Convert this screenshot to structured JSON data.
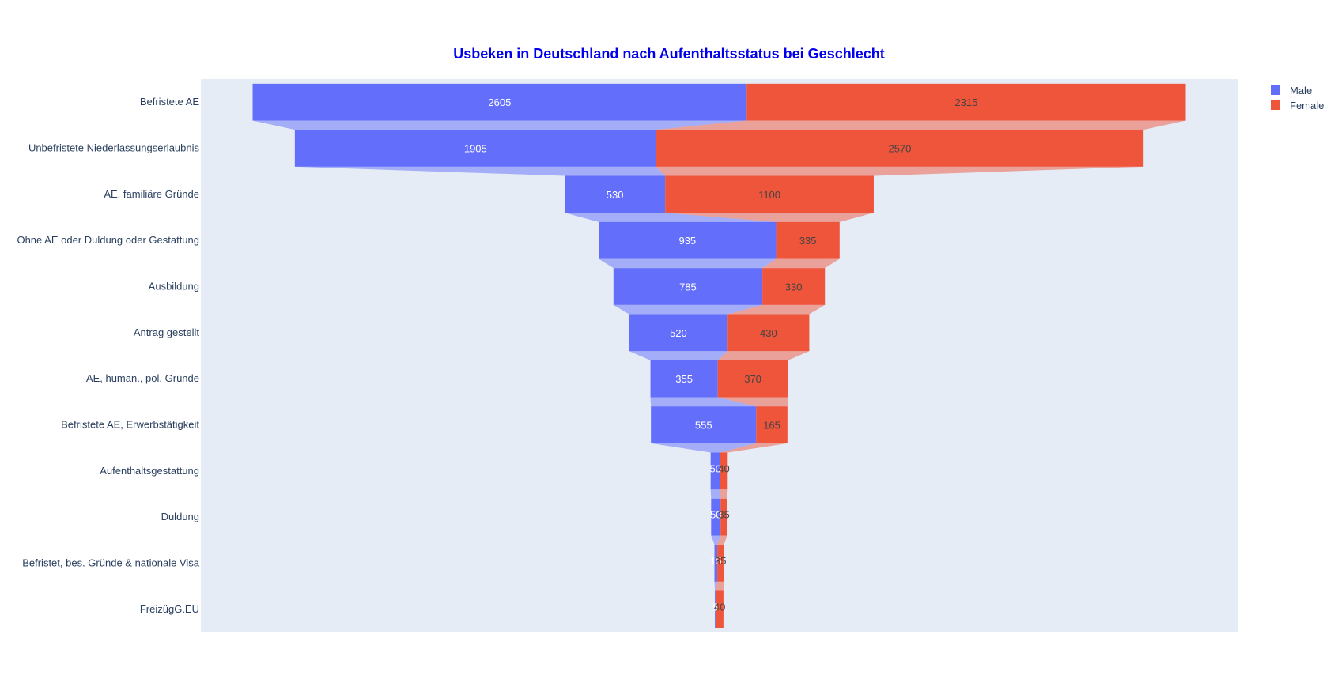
{
  "chart_data": {
    "type": "funnel",
    "title": "Usbeken in Deutschland nach Aufenthaltsstatus bei Geschlecht",
    "categories": [
      "Befristete AE",
      "Unbefristete Niederlassungserlaubnis",
      "AE, familiäre Gründe",
      "Ohne AE oder Duldung oder Gestattung",
      "Ausbildung",
      "Antrag gestellt",
      "AE, human., pol. Gründe",
      "Befristete AE, Erwerbstätigkeit",
      "Aufenthaltsgestattung",
      "Duldung",
      "Befristet, bes. Gründe & nationale Visa",
      "FreizügG.EU"
    ],
    "series": [
      {
        "name": "Male",
        "color": "#636efa",
        "text_color": "#ffffff",
        "values": [
          2605,
          1905,
          530,
          935,
          785,
          520,
          355,
          555,
          50,
          50,
          15,
          5
        ]
      },
      {
        "name": "Female",
        "color": "#ef553b",
        "text_color": "#444444",
        "values": [
          2315,
          2570,
          1100,
          335,
          330,
          430,
          370,
          165,
          40,
          35,
          35,
          40
        ]
      }
    ],
    "legend_position": "top-right",
    "plot_background": "#e5ecf6",
    "title_color": "#0000ee"
  }
}
